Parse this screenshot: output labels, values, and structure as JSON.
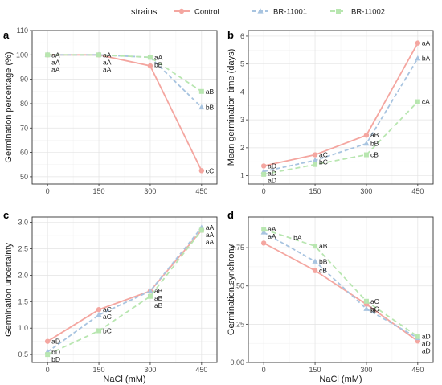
{
  "legend": {
    "title": "strains",
    "colors": {
      "Control": "#F4A6A0",
      "BR-11001": "#A8C4E0",
      "BR-11002": "#B8E6B0"
    }
  },
  "chart_data": [
    {
      "type": "line",
      "panel": "a",
      "ylabel": "Germination percentage (%)",
      "xlabel": "",
      "x": [
        0,
        150,
        300,
        450
      ],
      "xticks": [
        "0",
        "150",
        "300",
        "450"
      ],
      "ylim": [
        47,
        110
      ],
      "yticks": [
        50,
        60,
        70,
        80,
        90,
        100,
        110
      ],
      "grid": true,
      "series": [
        {
          "name": "Control",
          "values": [
            100,
            100,
            95.5,
            52.5
          ],
          "labels": [
            "aA",
            "aA",
            "",
            "cC"
          ]
        },
        {
          "name": "BR-11001",
          "values": [
            100,
            100,
            99,
            78.5
          ],
          "labels": [
            "aA",
            "aA",
            "",
            "bB"
          ]
        },
        {
          "name": "BR-11002",
          "values": [
            100,
            100,
            99,
            85
          ],
          "labels": [
            "aA",
            "aA",
            "aA",
            "aB"
          ]
        }
      ],
      "extra_labels": [
        {
          "text": "bB",
          "x": 300,
          "y": 96
        }
      ]
    },
    {
      "type": "line",
      "panel": "b",
      "ylabel": "Mean germination time (days)",
      "xlabel": "",
      "x": [
        0,
        150,
        300,
        450
      ],
      "xticks": [
        "0",
        "150",
        "300",
        "450"
      ],
      "ylim": [
        0.7,
        6.2
      ],
      "yticks": [
        1,
        2,
        3,
        4,
        5,
        6
      ],
      "grid": true,
      "series": [
        {
          "name": "Control",
          "values": [
            1.35,
            1.75,
            2.45,
            5.75
          ],
          "labels": [
            "aD",
            "aC",
            "aB",
            "aA"
          ]
        },
        {
          "name": "BR-11001",
          "values": [
            1.15,
            1.55,
            2.15,
            5.2
          ],
          "labels": [
            "aD",
            "bC",
            "bB",
            "bA"
          ]
        },
        {
          "name": "BR-11002",
          "values": [
            1.05,
            1.4,
            1.75,
            3.65
          ],
          "labels": [
            "aD",
            "",
            "cB",
            "cA"
          ]
        }
      ],
      "extra_labels": []
    },
    {
      "type": "line",
      "panel": "c",
      "ylabel": "Germination uncertainty",
      "xlabel": "NaCl (mM)",
      "x": [
        0,
        150,
        300,
        450
      ],
      "xticks": [
        "0",
        "150",
        "300",
        "450"
      ],
      "ylim": [
        0.35,
        3.1
      ],
      "yticks": [
        0.5,
        1.0,
        1.5,
        2.0,
        2.5,
        3.0
      ],
      "ytick_labels": [
        "0.5",
        "1.0",
        "1.5",
        "2.0",
        "2.5",
        "3.0"
      ],
      "grid": true,
      "series": [
        {
          "name": "Control",
          "values": [
            0.75,
            1.35,
            1.7,
            2.85
          ],
          "labels": [
            "aD",
            "aC",
            "aB",
            "aA"
          ]
        },
        {
          "name": "BR-11001",
          "values": [
            0.55,
            1.25,
            1.7,
            2.9
          ],
          "labels": [
            "bD",
            "aC",
            "aB",
            "aA"
          ]
        },
        {
          "name": "BR-11002",
          "values": [
            0.5,
            0.95,
            1.6,
            2.85
          ],
          "labels": [
            "bD",
            "bC",
            "aB",
            "aA"
          ]
        }
      ],
      "extra_labels": []
    },
    {
      "type": "line",
      "panel": "d",
      "ylabel": "Germination synchrony",
      "xlabel": "NaCl (mM)",
      "x": [
        0,
        150,
        300,
        450
      ],
      "xticks": [
        "0",
        "150",
        "300",
        "450"
      ],
      "ylim": [
        0,
        0.95
      ],
      "yticks": [
        0.0,
        0.25,
        0.5,
        0.75
      ],
      "ytick_labels": [
        "0.00",
        "0.25",
        "0.50",
        "0.75"
      ],
      "grid": true,
      "series": [
        {
          "name": "Control",
          "values": [
            0.78,
            0.6,
            0.38,
            0.14
          ],
          "labels": [
            "",
            "cB",
            "",
            "aD"
          ]
        },
        {
          "name": "BR-11001",
          "values": [
            0.85,
            0.66,
            0.35,
            0.16
          ],
          "labels": [
            "aA",
            "bB",
            "bC",
            "aD"
          ]
        },
        {
          "name": "BR-11002",
          "values": [
            0.87,
            0.76,
            0.4,
            0.17
          ],
          "labels": [
            "aA",
            "aB",
            "aC",
            "aD"
          ]
        }
      ],
      "extra_labels": [
        {
          "text": "bA",
          "x": 75,
          "y": 0.815
        },
        {
          "text": "bC",
          "x": 300,
          "y": 0.335
        }
      ]
    }
  ]
}
